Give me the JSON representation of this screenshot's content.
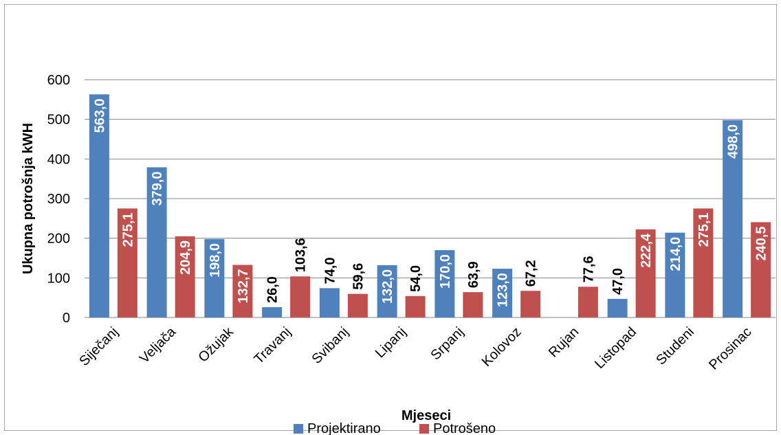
{
  "chart_data": {
    "type": "bar",
    "xlabel": "Mjeseci",
    "ylabel": "Ukupna potrošnja kWH",
    "ylim": [
      0,
      600
    ],
    "yticks": [
      0,
      100,
      200,
      300,
      400,
      500,
      600
    ],
    "grid": true,
    "legend_position": "bottom",
    "categories": [
      "Siječanj",
      "Veljača",
      "Ožujak",
      "Travanj",
      "Svibanj",
      "Lipanj",
      "Srpanj",
      "Kolovoz",
      "Rujan",
      "Listopad",
      "Studeni",
      "Prosinac"
    ],
    "series": [
      {
        "name": "Projektirano",
        "color": "#4f81bd",
        "values": [
          563.0,
          379.0,
          198.0,
          26.0,
          74.0,
          132.0,
          170.0,
          123.0,
          null,
          47.0,
          214.0,
          498.0
        ],
        "labels": [
          "563,0",
          "379,0",
          "198,0",
          "26,0",
          "74,0",
          "132,0",
          "170,0",
          "123,0",
          "",
          "47,0",
          "214,0",
          "498,0"
        ]
      },
      {
        "name": "Potrošeno",
        "color": "#c0504d",
        "values": [
          275.1,
          204.9,
          132.7,
          103.6,
          59.6,
          54.0,
          63.9,
          67.2,
          77.6,
          222.4,
          275.1,
          240.5
        ],
        "labels": [
          "275,1",
          "204,9",
          "132,7",
          "103,6",
          "59,6",
          "54,0",
          "63,9",
          "67,2",
          "77,6",
          "222,4",
          "275,1",
          "240,5"
        ]
      }
    ]
  }
}
